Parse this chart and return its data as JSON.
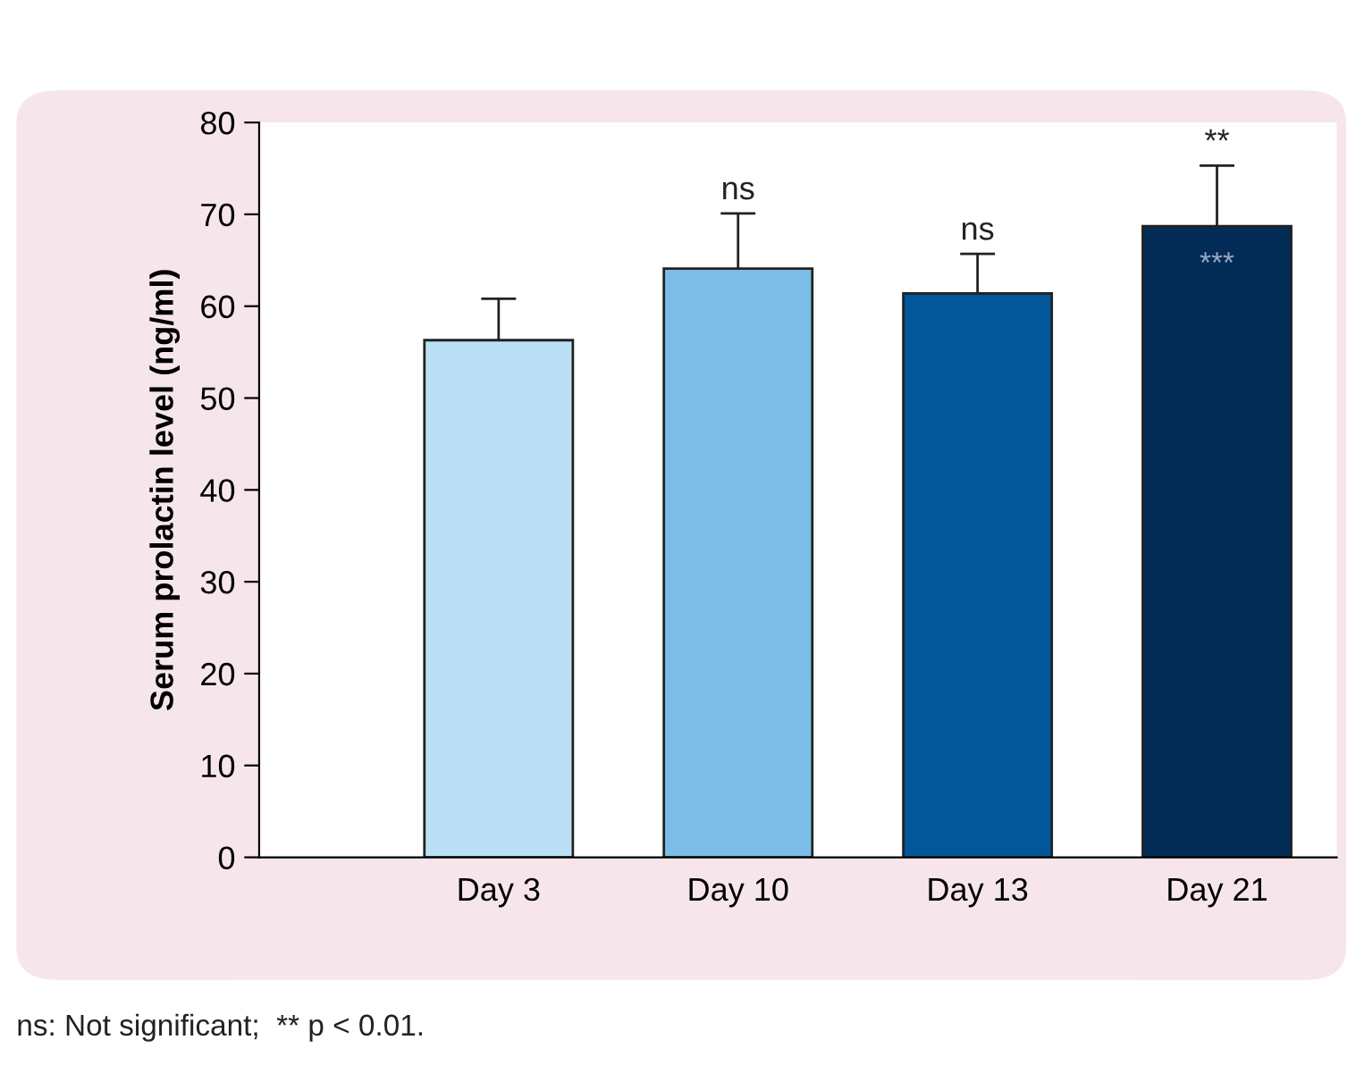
{
  "chart_data": {
    "type": "bar",
    "ylabel": "Serum prolactin level (ng/ml)",
    "categories": [
      "Day 3",
      "Day 10",
      "Day 13",
      "Day 21"
    ],
    "values": [
      56.3,
      64.1,
      61.4,
      68.7
    ],
    "errors": [
      4.5,
      6.0,
      4.3,
      6.6
    ],
    "colors": [
      "#bbe0f6",
      "#7bbde7",
      "#02569a",
      "#022b56"
    ],
    "ylim": [
      0,
      80
    ],
    "yticks": [
      0,
      10,
      20,
      30,
      40,
      50,
      60,
      70,
      80
    ],
    "grid": false,
    "annotations": [
      "ns",
      "ns",
      "**",
      "***",
      "ns: Not significant;  ** p < 0.01."
    ]
  }
}
